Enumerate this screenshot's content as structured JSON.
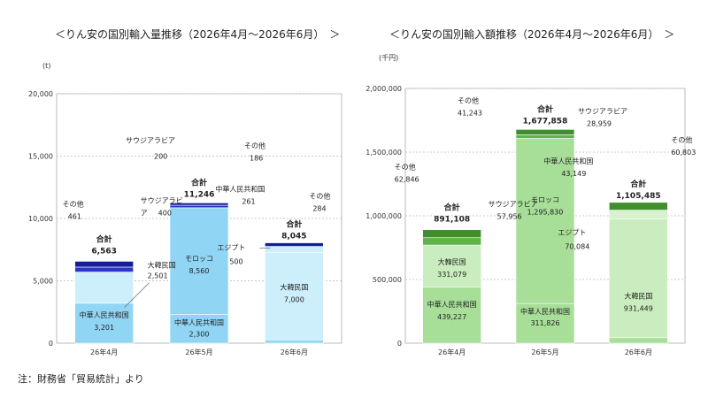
{
  "note": "注：財務省「貿易統計」より",
  "chart_data": [
    {
      "type": "bar",
      "stacked": true,
      "title": "＜りん安の国別輸入量推移（2026年4月～2026年6月）　＞",
      "unit": "(t)",
      "categories": [
        "26年4月",
        "26年5月",
        "26年6月"
      ],
      "ylim": [
        0,
        20000
      ],
      "yticks": [
        0,
        5000,
        10000,
        15000,
        20000
      ],
      "ytick_labels": [
        "0",
        "5,000",
        "10,000",
        "15,000",
        "20,000"
      ],
      "grid": true,
      "colors": {
        "中華人民共和国": "#91d5f5",
        "モロッコ": "#91d5f5",
        "大韓民国": "#cdeefb",
        "エジプト": "#cdeefb",
        "サウジアラビア": "#2b36c4",
        "その他": "#141e9c"
      },
      "series": [
        {
          "name": "中華人民共和国",
          "values": [
            3201,
            2300,
            261
          ]
        },
        {
          "name": "モロッコ",
          "values": [
            0,
            8560,
            0
          ]
        },
        {
          "name": "大韓民国",
          "values": [
            2501,
            0,
            7000
          ]
        },
        {
          "name": "エジプト",
          "values": [
            0,
            0,
            500
          ]
        },
        {
          "name": "サウジアラビア",
          "values": [
            400,
            200,
            0
          ]
        },
        {
          "name": "その他",
          "values": [
            461,
            186,
            284
          ]
        }
      ],
      "totals_label": "合計",
      "totals": [
        6563,
        11246,
        8045
      ],
      "total_labels": [
        "6,563",
        "11,246",
        "8,045"
      ],
      "data_labels": [
        [
          "3,201",
          "2,300",
          "261"
        ],
        [
          "",
          "8,560",
          ""
        ],
        [
          "2,501",
          "",
          "7,000"
        ],
        [
          "",
          "",
          "500"
        ],
        [
          "400",
          "200",
          ""
        ],
        [
          "461",
          "186",
          "284"
        ]
      ],
      "label_texts": {
        "中華人民共和国": "中華人民共和国",
        "モロッコ": "モロッコ",
        "大韓民国": "大韓民国",
        "エジプト": "エジプト",
        "サウジアラビア": "サウジアラビア",
        "サウジアラビア_wrap1": "サウジアラビ",
        "サウジアラビア_wrap2": "ア",
        "その他": "その他"
      }
    },
    {
      "type": "bar",
      "stacked": true,
      "title": "＜りん安の国別輸入額推移（2026年4月～2026年6月）　＞",
      "unit": "(千円)",
      "categories": [
        "26年4月",
        "26年5月",
        "26年6月"
      ],
      "ylim": [
        0,
        2000000
      ],
      "yticks": [
        0,
        500000,
        1000000,
        1500000,
        2000000
      ],
      "ytick_labels": [
        "0",
        "500,000",
        "1,000,000",
        "1,500,000",
        "2,000,000"
      ],
      "grid": true,
      "colors": {
        "中華人民共和国": "#a7de98",
        "モロッコ": "#a7de98",
        "大韓民国": "#c9edbe",
        "エジプト": "#d8f2cf",
        "サウジアラビア": "#5fb347",
        "その他": "#3f8f2e"
      },
      "series": [
        {
          "name": "中華人民共和国",
          "values": [
            439227,
            311826,
            43149
          ]
        },
        {
          "name": "モロッコ",
          "values": [
            0,
            1295830,
            0
          ]
        },
        {
          "name": "大韓民国",
          "values": [
            331079,
            0,
            931449
          ]
        },
        {
          "name": "エジプト",
          "values": [
            0,
            0,
            70084
          ]
        },
        {
          "name": "サウジアラビア",
          "values": [
            57956,
            28959,
            0
          ]
        },
        {
          "name": "その他",
          "values": [
            62846,
            41243,
            60803
          ]
        }
      ],
      "totals_label": "合計",
      "totals": [
        891108,
        1677858,
        1105485
      ],
      "total_labels": [
        "891,108",
        "1,677,858",
        "1,105,485"
      ],
      "data_labels": [
        [
          "439,227",
          "311,826",
          "43,149"
        ],
        [
          "",
          "1,295,830",
          ""
        ],
        [
          "331,079",
          "",
          "931,449"
        ],
        [
          "",
          "",
          "70,084"
        ],
        [
          "57,956",
          "28,959",
          ""
        ],
        [
          "62,846",
          "41,243",
          "60,803"
        ]
      ],
      "label_texts": {
        "中華人民共和国": "中華人民共和国",
        "モロッコ": "モロッコ",
        "大韓民国": "大韓民国",
        "エジプト": "エジプト",
        "サウジアラビア": "サウジアラビア",
        "その他": "その他"
      }
    }
  ]
}
